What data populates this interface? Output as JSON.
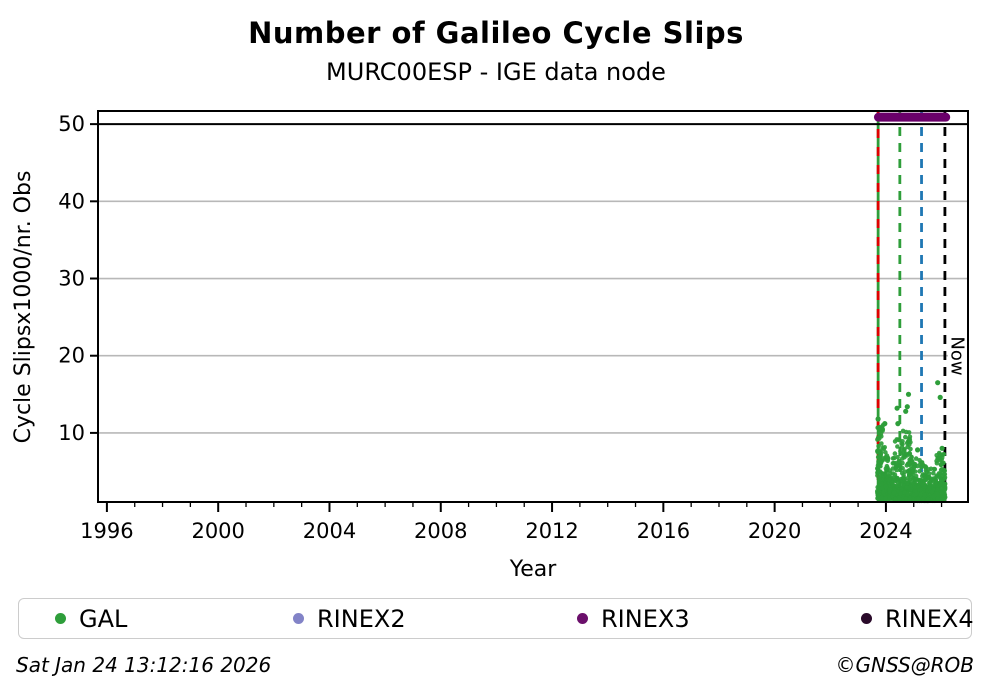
{
  "header": {
    "title": "Number of Galileo Cycle Slips",
    "subtitle": "MURC00ESP - IGE data node"
  },
  "footer": {
    "timestamp": "Sat Jan 24 13:12:16 2026",
    "credit": "©GNSS@ROB"
  },
  "legend": {
    "items": [
      {
        "label": "GAL",
        "color": "#2e9e3a"
      },
      {
        "label": "RINEX2",
        "color": "#8283c7"
      },
      {
        "label": "RINEX3",
        "color": "#6b0f6b"
      },
      {
        "label": "RINEX4",
        "color": "#2a0a2a"
      }
    ]
  },
  "chart_data": {
    "type": "scatter",
    "title": "Number of Galileo Cycle Slips",
    "subtitle": "MURC00ESP - IGE data node",
    "xlabel": "Year",
    "ylabel": "Cycle Slipsx1000/nr. Obs",
    "now_label": "Now",
    "xlim": [
      1995.68,
      2026.95
    ],
    "ylim": [
      1.05,
      51.7
    ],
    "x_major_ticks": [
      1996,
      2000,
      2004,
      2008,
      2012,
      2016,
      2020,
      2024
    ],
    "x_minor_from": 1996,
    "x_minor_to": 2026,
    "y_ticks": [
      10,
      20,
      30,
      40,
      50
    ],
    "grid": "horizontal",
    "grid_color": "#b8b8b8",
    "top_rule_value": 50,
    "series": [
      {
        "name": "GAL",
        "color": "#2e9e3a",
        "marker": "circle",
        "clusters": [
          [
            2023.69,
            2023.9,
            130,
            1.5,
            11.0
          ],
          [
            2023.9,
            2024.1,
            95,
            1.4,
            8.2
          ],
          [
            2024.1,
            2024.32,
            75,
            1.5,
            7.0
          ],
          [
            2024.32,
            2024.58,
            85,
            1.4,
            9.6
          ],
          [
            2024.58,
            2024.9,
            115,
            1.4,
            10.4
          ],
          [
            2024.9,
            2025.1,
            75,
            1.3,
            7.0
          ],
          [
            2025.1,
            2025.45,
            115,
            1.2,
            6.6
          ],
          [
            2025.45,
            2025.8,
            95,
            1.2,
            5.4
          ],
          [
            2025.8,
            2026.13,
            115,
            1.3,
            7.6
          ],
          [
            2023.7,
            2026.13,
            220,
            1.4,
            4.0
          ]
        ],
        "outliers": [
          [
            2023.72,
            11.8
          ],
          [
            2023.76,
            10.7
          ],
          [
            2023.96,
            11.2
          ],
          [
            2024.4,
            13.2
          ],
          [
            2024.43,
            11.2
          ],
          [
            2024.71,
            12.8
          ],
          [
            2024.77,
            13.4
          ],
          [
            2024.81,
            15.0
          ],
          [
            2025.14,
            7.8
          ],
          [
            2025.86,
            16.5
          ],
          [
            2025.95,
            14.6
          ],
          [
            2026.02,
            8.0
          ]
        ]
      }
    ],
    "availability_band": {
      "name": "RINEX3",
      "color": "#6a006a",
      "x0": 2023.57,
      "x1": 2026.31,
      "value": 50.9
    },
    "event_lines": [
      {
        "year": 2023.72,
        "color": "#2e9e3a",
        "dash": "solid"
      },
      {
        "year": 2023.72,
        "color": "#e00000",
        "dash": "alternate"
      },
      {
        "year": 2024.5,
        "color": "#2e9e3a",
        "dash": "dashed"
      },
      {
        "year": 2025.28,
        "color": "#1f77b4",
        "dash": "dashed"
      },
      {
        "year": 2026.12,
        "color": "#000000",
        "dash": "dashed",
        "label": "Now"
      }
    ]
  }
}
